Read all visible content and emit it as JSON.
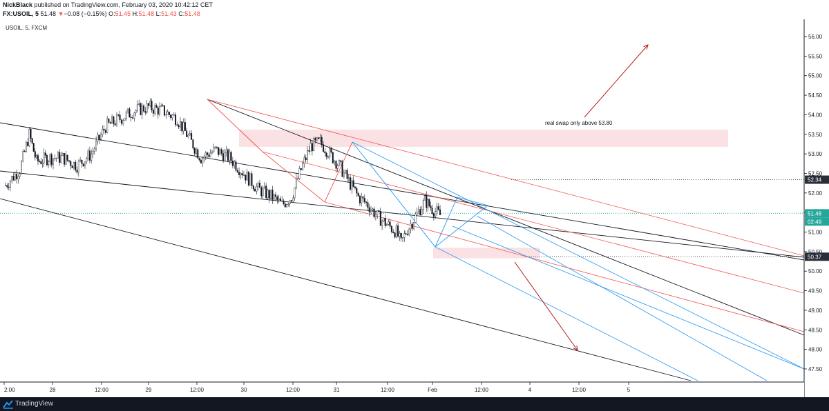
{
  "header": {
    "author": "NickBlack",
    "published": "published on TradingView.com, February 03, 2020 10:42:12 CET",
    "symbol": "FX:USOIL, 5",
    "last": "51.48",
    "change": "−0.08 (−0.15%)",
    "o_label": "O:",
    "o": "51.45",
    "h_label": "H:",
    "h": "51.48",
    "l_label": "L:",
    "l": "51.43",
    "c_label": "C:",
    "c": "51.48"
  },
  "footer": {
    "brand": "TradingView",
    "logo_icon": "tradingview-logo-icon"
  },
  "colors": {
    "red": "#ef5350",
    "green": "#26a69a",
    "blue": "#2196f3",
    "black": "#131722",
    "zone": "#f8d7da"
  },
  "chart_data": {
    "type": "candlestick",
    "title": "USOIL, 5, FXCM",
    "x_ticks": [
      "2:00",
      "28",
      "12:00",
      "29",
      "12:00",
      "30",
      "12:00",
      "31",
      "12:00",
      "Feb",
      "12:00",
      "4",
      "12:00",
      "5"
    ],
    "y_ticks": [
      "56.00",
      "55.50",
      "55.00",
      "54.50",
      "54.00",
      "53.50",
      "53.00",
      "52.50",
      "52.00",
      "51.50",
      "51.00",
      "50.50",
      "50.00",
      "49.50",
      "49.00",
      "48.50",
      "48.00",
      "47.50"
    ],
    "ylim": [
      47.2,
      56.3
    ],
    "price_labels": [
      {
        "value": "52.34",
        "style": "dark"
      },
      {
        "value": "51.48",
        "style": "green"
      },
      {
        "value": "02:49",
        "style": "green"
      },
      {
        "value": "50.37",
        "style": "dark"
      }
    ],
    "price_path": [
      [
        0,
        52.2
      ],
      [
        0.6,
        52.6
      ],
      [
        1.0,
        53.5
      ],
      [
        1.3,
        52.8
      ],
      [
        1.8,
        52.9
      ],
      [
        2.4,
        52.9
      ],
      [
        3.0,
        52.7
      ],
      [
        3.6,
        53.0
      ],
      [
        4.2,
        53.7
      ],
      [
        4.8,
        53.9
      ],
      [
        5.4,
        54.1
      ],
      [
        6.0,
        54.2
      ],
      [
        6.6,
        54.1
      ],
      [
        7.2,
        53.9
      ],
      [
        7.8,
        53.3
      ],
      [
        8.2,
        52.9
      ],
      [
        8.8,
        53.1
      ],
      [
        9.4,
        52.9
      ],
      [
        10.0,
        52.5
      ],
      [
        10.6,
        52.1
      ],
      [
        11.2,
        51.9
      ],
      [
        11.6,
        51.7
      ],
      [
        12.0,
        51.9
      ],
      [
        12.4,
        52.6
      ],
      [
        12.8,
        53.2
      ],
      [
        13.2,
        53.3
      ],
      [
        13.6,
        53.0
      ],
      [
        14.0,
        52.7
      ],
      [
        14.4,
        52.3
      ],
      [
        14.8,
        51.9
      ],
      [
        15.2,
        51.7
      ],
      [
        15.6,
        51.4
      ],
      [
        16.0,
        51.2
      ],
      [
        16.4,
        51.0
      ],
      [
        16.6,
        50.7
      ],
      [
        16.8,
        51.0
      ],
      [
        17.2,
        51.4
      ],
      [
        17.6,
        51.8
      ],
      [
        17.9,
        51.6
      ],
      [
        18.1,
        51.5
      ],
      [
        18.3,
        51.4
      ]
    ],
    "annotations": [
      {
        "text": "real swap only above 53.80"
      }
    ]
  }
}
